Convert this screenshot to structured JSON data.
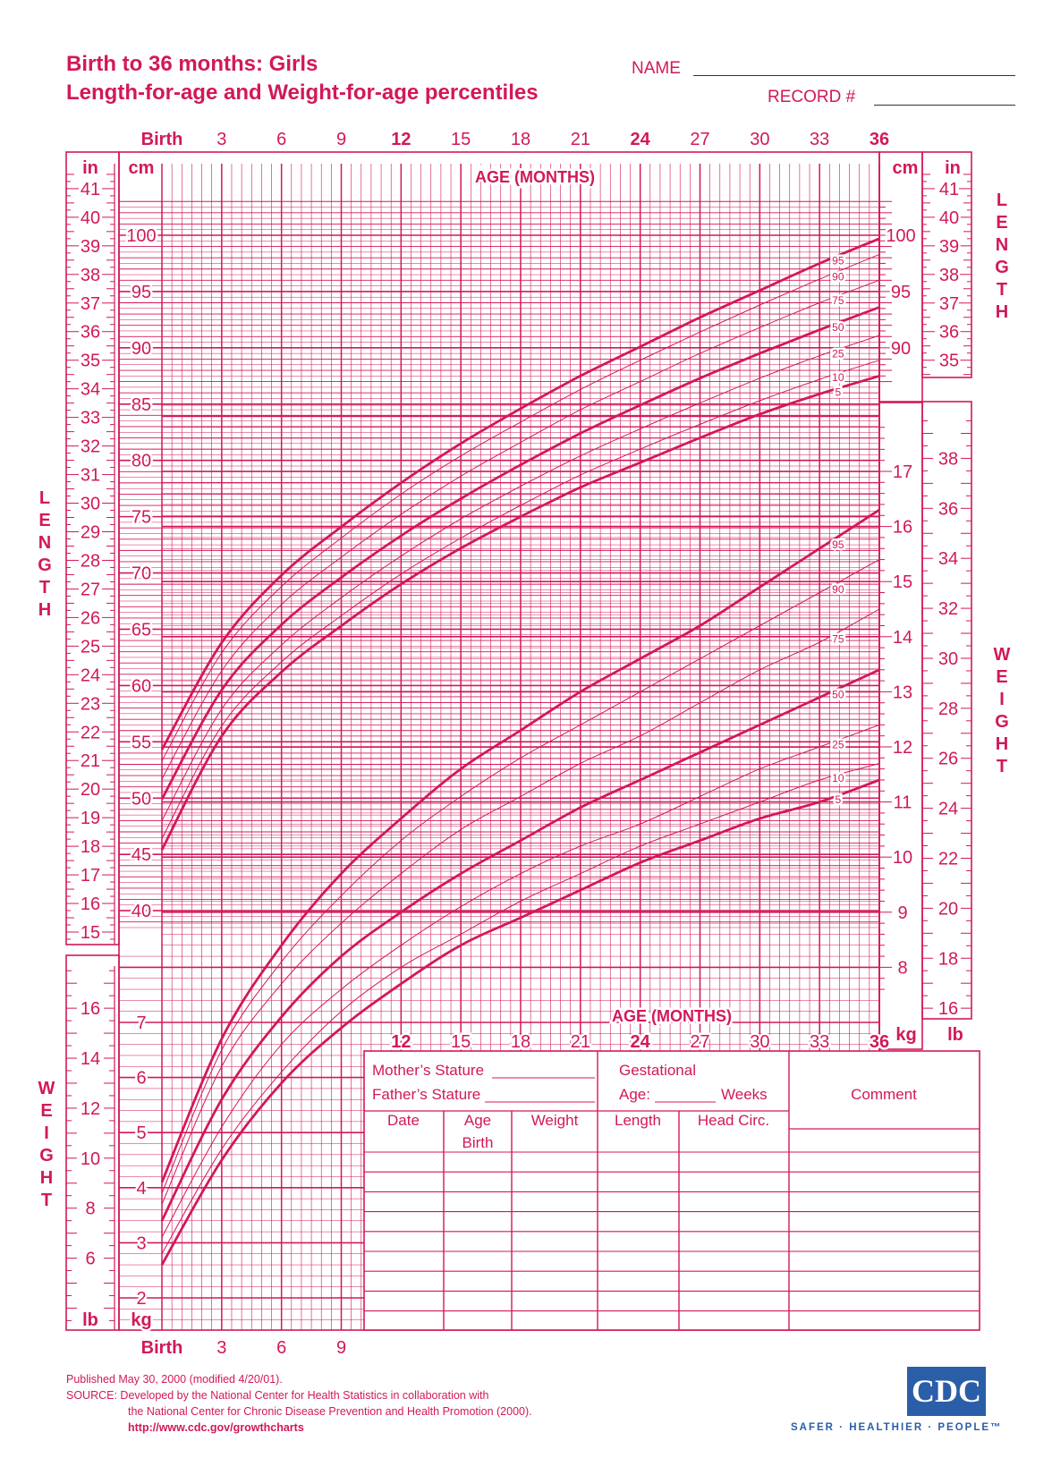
{
  "header": {
    "title_line1": "Birth to 36 months: Girls",
    "title_line2": "Length-for-age and Weight-for-age percentiles",
    "name_label": "NAME",
    "record_label": "RECORD #"
  },
  "axes": {
    "age_label": "AGE (MONTHS)",
    "top_ticks": [
      "Birth",
      "3",
      "6",
      "9",
      "12",
      "15",
      "18",
      "21",
      "24",
      "27",
      "30",
      "33",
      "36"
    ],
    "bottom_ticks": [
      "Birth",
      "3",
      "6",
      "9"
    ],
    "lower_ticks": [
      "12",
      "15",
      "18",
      "21",
      "24",
      "27",
      "30",
      "33",
      "36"
    ],
    "bold_months": [
      "12",
      "24",
      "36"
    ],
    "unit_in": "in",
    "unit_cm": "cm",
    "unit_kg": "kg",
    "unit_lb": "lb",
    "length_word": [
      "L",
      "E",
      "N",
      "G",
      "T",
      "H"
    ],
    "weight_word": [
      "W",
      "E",
      "I",
      "G",
      "H",
      "T"
    ],
    "length_cm_ticks": [
      "40",
      "45",
      "50",
      "55",
      "60",
      "65",
      "70",
      "75",
      "80",
      "85",
      "90",
      "95",
      "100"
    ],
    "length_cm_right_ticks": [
      "90",
      "95",
      "100"
    ],
    "length_in_ticks": [
      "15",
      "16",
      "17",
      "18",
      "19",
      "20",
      "21",
      "22",
      "23",
      "24",
      "25",
      "26",
      "27",
      "28",
      "29",
      "30",
      "31",
      "32",
      "33",
      "34",
      "35",
      "36",
      "37",
      "38",
      "39",
      "40",
      "41"
    ],
    "length_in_right_ticks": [
      "35",
      "36",
      "37",
      "38",
      "39",
      "40",
      "41"
    ],
    "weight_kg_left_ticks": [
      "2",
      "3",
      "4",
      "5",
      "6",
      "7"
    ],
    "weight_lb_left_ticks": [
      "6",
      "8",
      "10",
      "12",
      "14",
      "16"
    ],
    "weight_kg_right_ticks": [
      "8",
      "9",
      "10",
      "11",
      "12",
      "13",
      "14",
      "15",
      "16",
      "17"
    ],
    "weight_lb_right_ticks": [
      "16",
      "18",
      "20",
      "22",
      "24",
      "26",
      "28",
      "30",
      "32",
      "34",
      "36",
      "38"
    ]
  },
  "record_table": {
    "mothers_stature": "Mother’s Stature",
    "fathers_stature": "Father’s Stature",
    "gestational": "Gestational",
    "age_label": "Age:",
    "weeks": "Weeks",
    "comment": "Comment",
    "columns": [
      "Date",
      "Age",
      "Weight",
      "Length",
      "Head  Circ."
    ],
    "birth_row_age": "Birth"
  },
  "footer": {
    "published": "Published May 30, 2000 (modified 4/20/01).",
    "source1": "SOURCE: Developed by the National Center for Health Statistics in collaboration with",
    "source2": "the National Center for Chronic Disease Prevention and Health Promotion (2000).",
    "url": "http://www.cdc.gov/growthcharts",
    "cdc_logo": "CDC",
    "cdc_tagline": "SAFER · HEALTHIER · PEOPLE™"
  },
  "colors": {
    "accent": "#d2185b",
    "cdc_blue": "#2a5ea8"
  },
  "chart_data": [
    {
      "type": "line",
      "title": "Length-for-age percentiles",
      "xlabel": "AGE (MONTHS)",
      "ylabel": "LENGTH (cm)",
      "xlim": [
        0,
        36
      ],
      "ylim": [
        40,
        102
      ],
      "x": [
        0,
        3,
        6,
        9,
        12,
        15,
        18,
        21,
        24,
        27,
        30,
        33,
        36
      ],
      "series": [
        {
          "name": "5",
          "values": [
            45.4,
            55.5,
            61.2,
            65.3,
            69.0,
            72.2,
            75.0,
            77.6,
            79.8,
            82.0,
            84.1,
            85.9,
            87.5
          ]
        },
        {
          "name": "10",
          "values": [
            46.4,
            56.4,
            62.1,
            66.2,
            69.9,
            73.1,
            76.0,
            78.7,
            81.0,
            83.2,
            85.3,
            87.2,
            88.9
          ]
        },
        {
          "name": "25",
          "values": [
            48.0,
            57.9,
            63.6,
            67.8,
            71.5,
            74.8,
            77.7,
            80.4,
            82.8,
            85.1,
            87.3,
            89.3,
            91.1
          ]
        },
        {
          "name": "50",
          "values": [
            49.9,
            59.6,
            65.4,
            69.6,
            73.3,
            76.6,
            79.6,
            82.4,
            84.9,
            87.3,
            89.5,
            91.6,
            93.6
          ]
        },
        {
          "name": "75",
          "values": [
            51.7,
            61.3,
            67.2,
            71.4,
            75.2,
            78.6,
            81.6,
            84.5,
            87.0,
            89.5,
            91.8,
            94.0,
            96.0
          ]
        },
        {
          "name": "90",
          "values": [
            53.3,
            62.9,
            68.8,
            73.1,
            77.0,
            80.4,
            83.4,
            86.3,
            88.9,
            91.4,
            93.8,
            96.1,
            98.3
          ]
        },
        {
          "name": "95",
          "values": [
            54.3,
            63.8,
            69.8,
            74.1,
            78.0,
            81.5,
            84.6,
            87.5,
            90.1,
            92.7,
            95.1,
            97.5,
            99.7
          ]
        }
      ]
    },
    {
      "type": "line",
      "title": "Weight-for-age percentiles",
      "xlabel": "AGE (MONTHS)",
      "ylabel": "WEIGHT (kg)",
      "xlim": [
        0,
        36
      ],
      "ylim": [
        1.6,
        17.8
      ],
      "x": [
        0,
        3,
        6,
        9,
        12,
        15,
        18,
        21,
        24,
        27,
        30,
        33,
        36
      ],
      "series": [
        {
          "name": "5",
          "values": [
            2.6,
            4.5,
            5.9,
            6.9,
            7.7,
            8.4,
            8.9,
            9.4,
            9.9,
            10.3,
            10.7,
            11.0,
            11.4
          ]
        },
        {
          "name": "10",
          "values": [
            2.8,
            4.7,
            6.1,
            7.2,
            8.0,
            8.6,
            9.2,
            9.7,
            10.2,
            10.6,
            11.0,
            11.4,
            11.7
          ]
        },
        {
          "name": "25",
          "values": [
            3.1,
            5.1,
            6.6,
            7.6,
            8.4,
            9.1,
            9.7,
            10.2,
            10.6,
            11.1,
            11.6,
            12.0,
            12.4
          ]
        },
        {
          "name": "50",
          "values": [
            3.4,
            5.6,
            7.1,
            8.2,
            9.0,
            9.7,
            10.3,
            10.9,
            11.4,
            11.9,
            12.4,
            12.9,
            13.4
          ]
        },
        {
          "name": "75",
          "values": [
            3.7,
            6.2,
            7.7,
            8.8,
            9.7,
            10.5,
            11.1,
            11.7,
            12.2,
            12.8,
            13.4,
            13.9,
            14.5
          ]
        },
        {
          "name": "90",
          "values": [
            3.9,
            6.5,
            8.1,
            9.3,
            10.3,
            11.1,
            11.8,
            12.4,
            13.0,
            13.6,
            14.2,
            14.8,
            15.4
          ]
        },
        {
          "name": "95",
          "values": [
            4.1,
            6.7,
            8.4,
            9.7,
            10.7,
            11.6,
            12.3,
            13.0,
            13.6,
            14.2,
            14.9,
            15.6,
            16.3
          ]
        }
      ]
    }
  ]
}
